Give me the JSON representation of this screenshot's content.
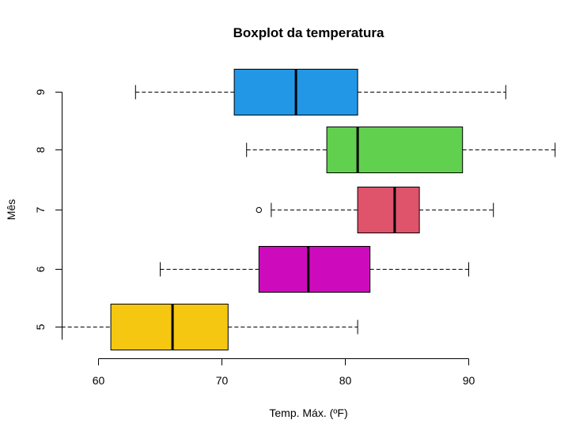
{
  "chart_data": {
    "type": "boxplot",
    "orientation": "horizontal",
    "title": "Boxplot da temperatura",
    "xlabel": "Temp. Máx. (ºF)",
    "ylabel": "Mês",
    "xlim": [
      57,
      97
    ],
    "xticks": [
      60,
      70,
      80,
      90
    ],
    "grid": false,
    "categories": [
      "5",
      "6",
      "7",
      "8",
      "9"
    ],
    "boxes": [
      {
        "category": "5",
        "whisker_low": 57,
        "q1": 61,
        "median": 66,
        "q3": 70.5,
        "whisker_high": 81,
        "outliers": [],
        "color": "#F5C710"
      },
      {
        "category": "6",
        "whisker_low": 65,
        "q1": 73,
        "median": 77,
        "q3": 82,
        "whisker_high": 90,
        "outliers": [],
        "color": "#CD0BBC"
      },
      {
        "category": "7",
        "whisker_low": 74,
        "q1": 81,
        "median": 84,
        "q3": 86,
        "whisker_high": 92,
        "outliers": [
          73
        ],
        "color": "#DF536B"
      },
      {
        "category": "8",
        "whisker_low": 72,
        "q1": 78.5,
        "median": 81,
        "q3": 89.5,
        "whisker_high": 97,
        "outliers": [],
        "color": "#61D04F"
      },
      {
        "category": "9",
        "whisker_low": 63,
        "q1": 71,
        "median": 76,
        "q3": 81,
        "whisker_high": 93,
        "outliers": [],
        "color": "#2297E6"
      }
    ]
  }
}
